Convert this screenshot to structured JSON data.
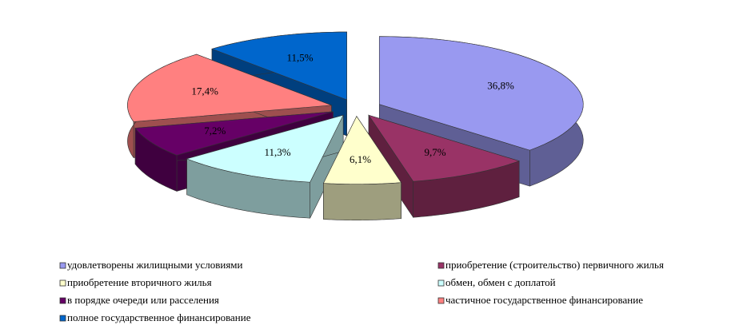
{
  "chart_data": {
    "type": "pie",
    "style": "3d-exploded",
    "categories": [
      "удовлетворены жилищными условиями",
      "приобретение (строительство) первичного жилья",
      "приобретение вторичного жилья",
      "обмен, обмен с доплатой",
      "в порядке очереди или расселения",
      "частичное государственное финансирование",
      "полное государственное финансирование"
    ],
    "values": [
      36.8,
      9.7,
      6.1,
      11.3,
      7.2,
      17.4,
      11.5
    ],
    "value_labels": [
      "36,8%",
      "9,7%",
      "6,1%",
      "11,3%",
      "7,2%",
      "17,4%",
      "11,5%"
    ],
    "colors": [
      "#9999f0",
      "#993366",
      "#ffffcc",
      "#ccffff",
      "#660066",
      "#ff8080",
      "#0066cc"
    ],
    "legend": "bottom"
  }
}
